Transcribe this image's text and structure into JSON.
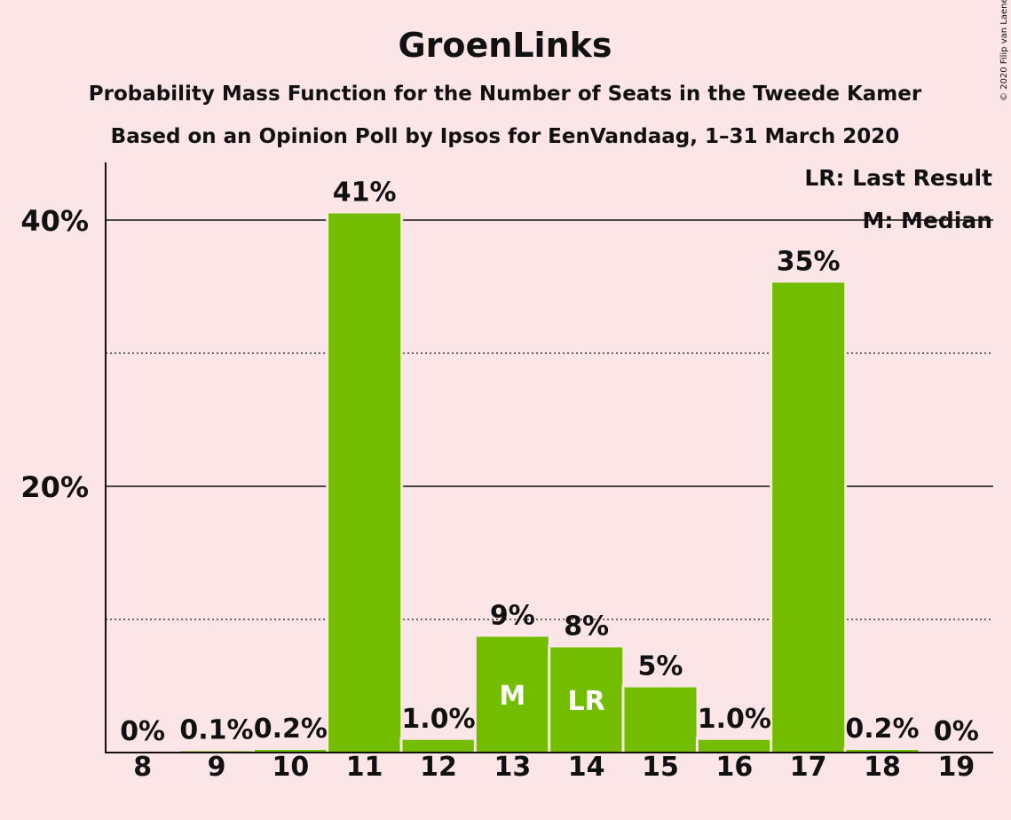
{
  "chart_data": {
    "type": "bar",
    "title": "GroenLinks",
    "subtitle": "Probability Mass Function for the Number of Seats in the Tweede Kamer",
    "subtitle2": "Based on an Opinion Poll by Ipsos for EenVandaag, 1–31 March 2020",
    "copyright": "© 2020 Filip van Laenen",
    "legend": [
      "LR: Last Result",
      "M: Median"
    ],
    "legend_position": "top-right",
    "xlabel": "",
    "ylabel": "",
    "ylim": [
      0,
      44
    ],
    "yticks": [
      {
        "value": 20,
        "label": "20%"
      },
      {
        "value": 40,
        "label": "40%"
      }
    ],
    "dotted_gridlines": [
      10,
      30
    ],
    "solid_gridlines": [
      20,
      40
    ],
    "bar_color": "#73bd00",
    "categories": [
      "8",
      "9",
      "10",
      "11",
      "12",
      "13",
      "14",
      "15",
      "16",
      "17",
      "18",
      "19"
    ],
    "values": [
      0,
      0.1,
      0.2,
      40.5,
      0.95,
      8.7,
      7.9,
      4.9,
      0.95,
      35.3,
      0.2,
      0
    ],
    "data_labels": [
      "0%",
      "0.1%",
      "0.2%",
      "41%",
      "1.0%",
      "9%",
      "8%",
      "5%",
      "1.0%",
      "35%",
      "0.2%",
      "0%"
    ],
    "bar_annotations": {
      "13": "M",
      "14": "LR"
    }
  }
}
